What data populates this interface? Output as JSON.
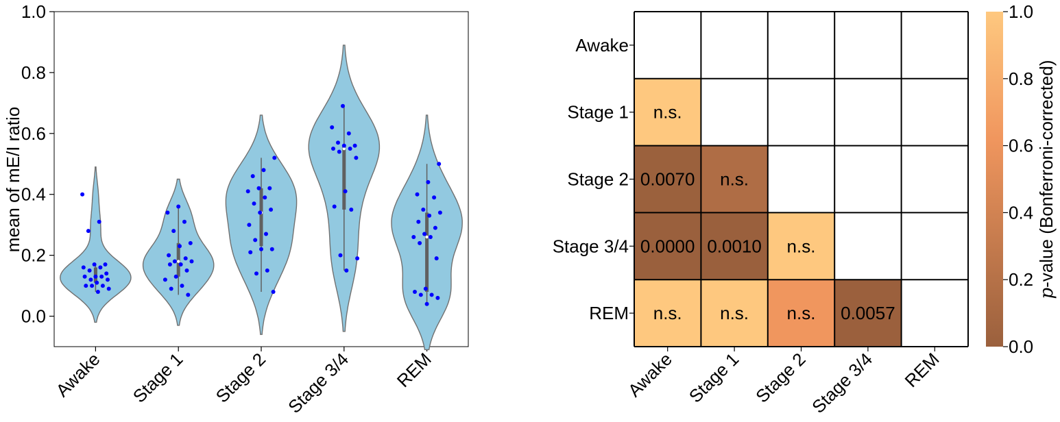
{
  "chart_data": [
    {
      "type": "violin",
      "ylabel": "mean of mE/I ratio",
      "xlabel": "",
      "ylim": [
        -0.1,
        1.0
      ],
      "yticks": [
        "0.0",
        "0.2",
        "0.4",
        "0.6",
        "0.8",
        "1.0"
      ],
      "categories": [
        "Awake",
        "Stage 1",
        "Stage 2",
        "Stage 3/4",
        "REM"
      ],
      "colors": {
        "violin_fill": "#92c9e0",
        "violin_edge": "#707070",
        "points": "#0000ff",
        "box": "#606060"
      },
      "series": [
        {
          "name": "Awake",
          "range": [
            -0.02,
            0.49
          ],
          "quartiles": [
            0.11,
            0.13,
            0.16
          ],
          "whiskers": [
            0.08,
            0.17
          ],
          "points": [
            0.4,
            0.31,
            0.28,
            0.17,
            0.17,
            0.16,
            0.16,
            0.15,
            0.14,
            0.13,
            0.13,
            0.13,
            0.12,
            0.12,
            0.11,
            0.1,
            0.1,
            0.1,
            0.09,
            0.08
          ]
        },
        {
          "name": "Stage 1",
          "range": [
            -0.03,
            0.45
          ],
          "quartiles": [
            0.13,
            0.18,
            0.24
          ],
          "whiskers": [
            0.07,
            0.36
          ],
          "points": [
            0.36,
            0.34,
            0.31,
            0.28,
            0.24,
            0.23,
            0.2,
            0.19,
            0.18,
            0.18,
            0.17,
            0.17,
            0.15,
            0.13,
            0.12,
            0.1,
            0.09,
            0.07
          ]
        },
        {
          "name": "Stage 2",
          "range": [
            -0.06,
            0.66
          ],
          "quartiles": [
            0.23,
            0.34,
            0.42
          ],
          "whiskers": [
            0.08,
            0.52
          ],
          "points": [
            0.52,
            0.48,
            0.46,
            0.42,
            0.42,
            0.41,
            0.39,
            0.37,
            0.35,
            0.34,
            0.3,
            0.27,
            0.25,
            0.22,
            0.22,
            0.21,
            0.15,
            0.14,
            0.08
          ]
        },
        {
          "name": "Stage 3/4",
          "range": [
            -0.05,
            0.89
          ],
          "quartiles": [
            0.35,
            0.55,
            0.56
          ],
          "whiskers": [
            0.15,
            0.69
          ],
          "points": [
            0.69,
            0.62,
            0.6,
            0.57,
            0.56,
            0.56,
            0.55,
            0.55,
            0.54,
            0.52,
            0.41,
            0.36,
            0.35,
            0.2,
            0.19,
            0.15
          ]
        },
        {
          "name": "REM",
          "range": [
            -0.11,
            0.66
          ],
          "quartiles": [
            0.08,
            0.26,
            0.34
          ],
          "whiskers": [
            0.04,
            0.5
          ],
          "points": [
            0.5,
            0.44,
            0.4,
            0.39,
            0.35,
            0.34,
            0.33,
            0.31,
            0.29,
            0.27,
            0.26,
            0.26,
            0.24,
            0.19,
            0.09,
            0.08,
            0.07,
            0.07,
            0.06,
            0.04
          ]
        }
      ]
    },
    {
      "type": "heatmap",
      "rows": [
        "Awake",
        "Stage 1",
        "Stage 2",
        "Stage 3/4",
        "REM"
      ],
      "cols": [
        "Awake",
        "Stage 1",
        "Stage 2",
        "Stage 3/4",
        "REM"
      ],
      "cells": [
        {
          "row": 1,
          "col": 0,
          "value": 1.0,
          "label": "n.s."
        },
        {
          "row": 2,
          "col": 0,
          "value": 0.007,
          "label": "0.0070"
        },
        {
          "row": 2,
          "col": 1,
          "value": 0.15,
          "label": "n.s."
        },
        {
          "row": 3,
          "col": 0,
          "value": 0.0,
          "label": "0.0000"
        },
        {
          "row": 3,
          "col": 1,
          "value": 0.001,
          "label": "0.0010"
        },
        {
          "row": 3,
          "col": 2,
          "value": 1.0,
          "label": "n.s."
        },
        {
          "row": 4,
          "col": 0,
          "value": 1.0,
          "label": "n.s."
        },
        {
          "row": 4,
          "col": 1,
          "value": 1.0,
          "label": "n.s."
        },
        {
          "row": 4,
          "col": 2,
          "value": 0.62,
          "label": "n.s."
        },
        {
          "row": 4,
          "col": 3,
          "value": 0.0057,
          "label": "0.0057"
        }
      ],
      "colorbar": {
        "label_italic": "p",
        "label_rest": "-value (Bonferroni-corrected)",
        "range": [
          0.0,
          1.0
        ],
        "ticks": [
          "0.0",
          "0.2",
          "0.4",
          "0.6",
          "0.8",
          "1.0"
        ],
        "color_low": "#9a603d",
        "color_mid": "#f0965e",
        "color_high": "#fec87f"
      }
    }
  ]
}
